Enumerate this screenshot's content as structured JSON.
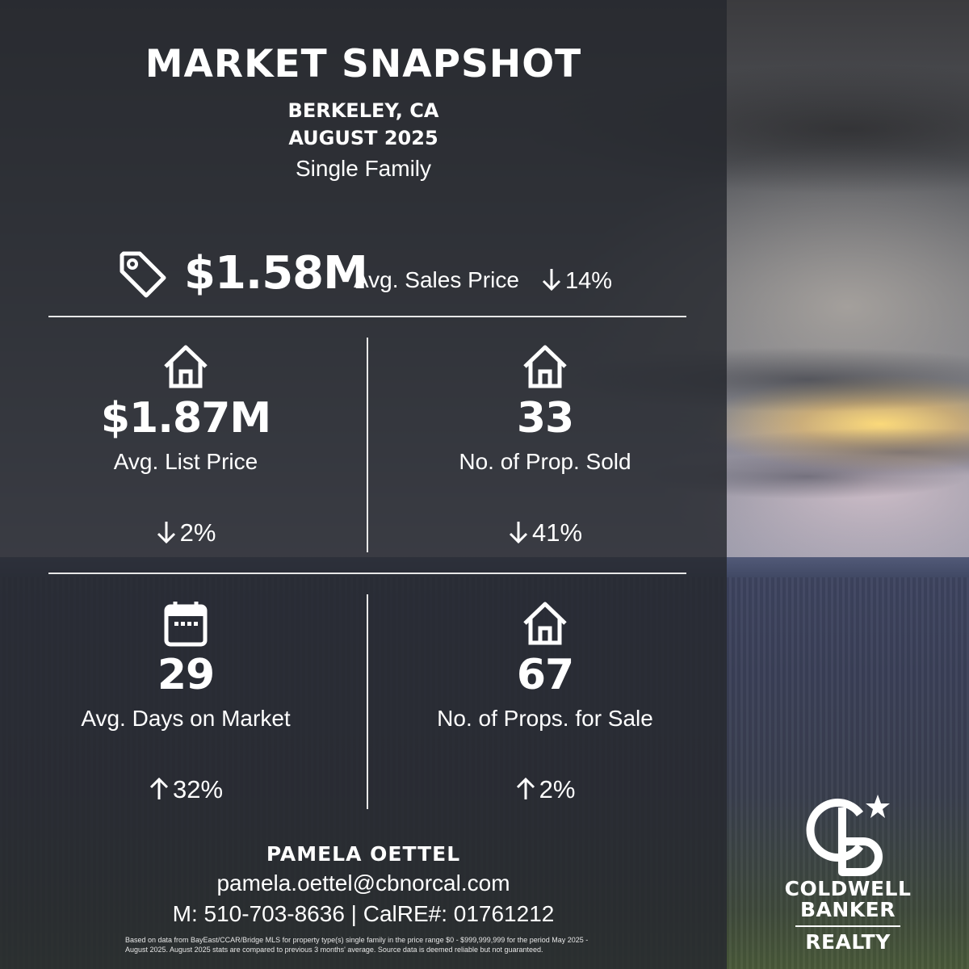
{
  "header": {
    "title": "MARKET SNAPSHOT",
    "location": "BERKELEY, CA",
    "period": "AUGUST 2025",
    "property_type": "Single Family"
  },
  "hero": {
    "icon": "price-tag-icon",
    "value": "$1.58M",
    "label": "Avg. Sales Price",
    "change_direction": "down",
    "change": "14%"
  },
  "stats": {
    "list_price": {
      "icon": "house-icon",
      "value": "$1.87M",
      "label": "Avg. List Price",
      "change_direction": "down",
      "change": "2%"
    },
    "sold": {
      "icon": "house-icon",
      "value": "33",
      "label": "No. of Prop. Sold",
      "change_direction": "down",
      "change": "41%"
    },
    "days": {
      "icon": "calendar-icon",
      "value": "29",
      "label": "Avg. Days on Market",
      "change_direction": "up",
      "change": "32%"
    },
    "for_sale": {
      "icon": "house-icon",
      "value": "67",
      "label": "No. of Props. for Sale",
      "change_direction": "up",
      "change": "2%"
    }
  },
  "agent": {
    "name": "PAMELA OETTEL",
    "email": "pamela.oettel@cbnorcal.com",
    "phone_line": "M: 510-703-8636 | CalRE#: 01761212"
  },
  "disclaimer": "Based on data from BayEast/CCAR/Bridge MLS for property type(s) single family in the price range $0 - $999,999,999 for the period May 2025 - August 2025. August 2025 stats are compared to previous 3 months' average. Source data is deemed reliable but not guaranteed.",
  "logo": {
    "line1": "COLDWELL",
    "line2": "BANKER",
    "line3": "REALTY"
  },
  "colors": {
    "panel": "#26282e",
    "text": "#ffffff"
  }
}
